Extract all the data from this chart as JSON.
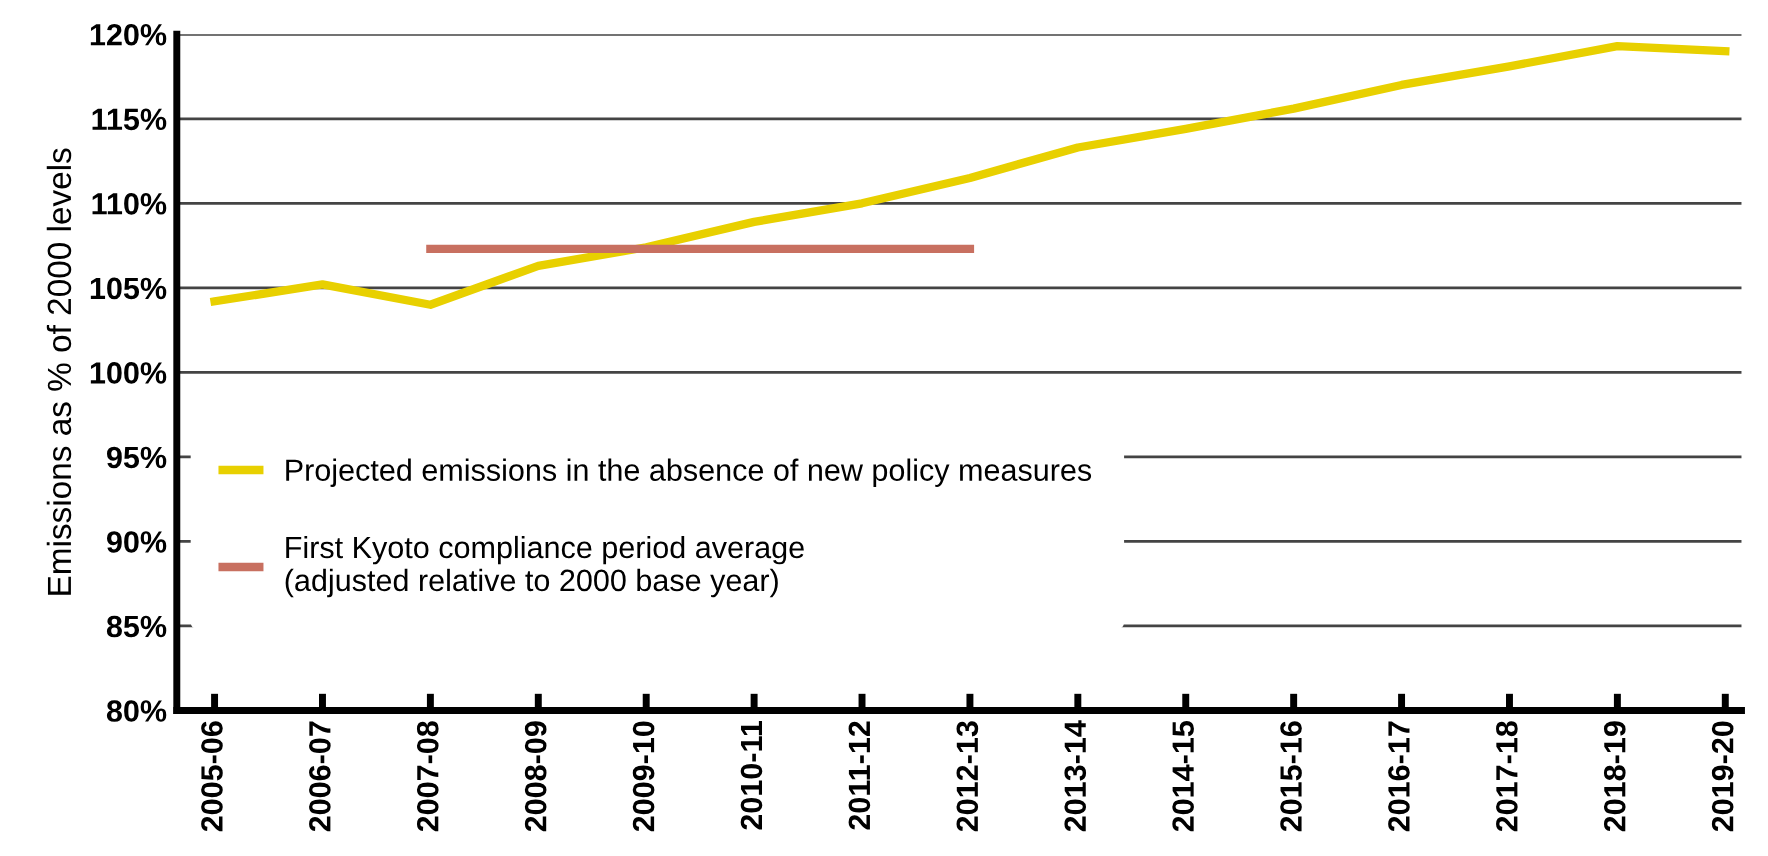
{
  "chart_data": {
    "type": "line",
    "ylabel": "Emissions as % of 2000 levels",
    "categories": [
      "2005-06",
      "2006-07",
      "2007-08",
      "2008-09",
      "2009-10",
      "2010-11",
      "2011-12",
      "2012-13",
      "2013-14",
      "2014-15",
      "2015-16",
      "2016-17",
      "2017-18",
      "2018-19",
      "2019-20"
    ],
    "series": [
      {
        "name": "Projected emissions in the absence of new policy measures",
        "color": "#e8d000",
        "values": [
          104.2,
          105.2,
          104.0,
          106.3,
          107.4,
          108.9,
          110.0,
          111.5,
          113.3,
          114.4,
          115.6,
          117.0,
          118.1,
          119.3,
          119.0
        ]
      },
      {
        "name": "First Kyoto compliance period average\n(adjusted relative to 2000 base year)",
        "color": "#c87060",
        "values": [
          null,
          null,
          107.3,
          107.3,
          107.3,
          107.3,
          107.3,
          107.3,
          null,
          null,
          null,
          null,
          null,
          null,
          null
        ]
      }
    ],
    "ylim": [
      80,
      120
    ],
    "yticks": [
      {
        "value": 80,
        "label": "80%"
      },
      {
        "value": 85,
        "label": "85%"
      },
      {
        "value": 90,
        "label": "90%"
      },
      {
        "value": 95,
        "label": "95%"
      },
      {
        "value": 100,
        "label": "100%"
      },
      {
        "value": 105,
        "label": "105%"
      },
      {
        "value": 110,
        "label": "110%"
      },
      {
        "value": 115,
        "label": "115%"
      },
      {
        "value": 120,
        "label": "120%"
      }
    ],
    "grid": "y",
    "legend": "left",
    "marker": "none",
    "line_style": "solid"
  }
}
